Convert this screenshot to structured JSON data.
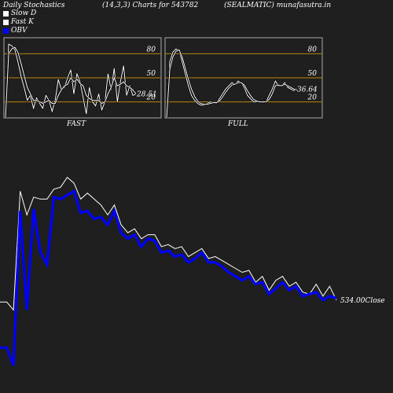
{
  "header": {
    "left": "Daily Stochastics",
    "middle": "(14,3,3) Charts for 543782",
    "right": "(SEALMATIC) munafasutra.in"
  },
  "legend": [
    {
      "label": "Slow  D",
      "color": "#ffffff"
    },
    {
      "label": "Fast K",
      "color": "#ffffff"
    },
    {
      "label": "OBV",
      "color": "#0000ff"
    }
  ],
  "chart_data": [
    {
      "type": "line",
      "label": "FAST",
      "ylim": [
        0,
        100
      ],
      "yticks": [
        20,
        50,
        80
      ],
      "guide_lines": [
        20,
        50,
        80
      ],
      "grid": false,
      "last_value_label": "28.51",
      "series": [
        {
          "name": "Fast K",
          "color": "#ffffff",
          "values": [
            0,
            92,
            90,
            85,
            70,
            52,
            38,
            22,
            28,
            12,
            25,
            18,
            12,
            28,
            22,
            8,
            22,
            48,
            35,
            38,
            50,
            60,
            30,
            55,
            45,
            25,
            5,
            38,
            20,
            15,
            30,
            10,
            20,
            55,
            35,
            62,
            20,
            45,
            65,
            28,
            40,
            28,
            30
          ]
        },
        {
          "name": "Slow D",
          "color": "#ffffff",
          "values": [
            0,
            80,
            86,
            88,
            82,
            68,
            53,
            38,
            30,
            22,
            22,
            20,
            18,
            20,
            22,
            18,
            18,
            28,
            35,
            40,
            42,
            50,
            45,
            48,
            43,
            40,
            28,
            24,
            22,
            22,
            22,
            18,
            20,
            30,
            38,
            50,
            40,
            42,
            45,
            40,
            38,
            35,
            30
          ]
        }
      ]
    },
    {
      "type": "line",
      "label": "FULL",
      "ylim": [
        0,
        100
      ],
      "yticks": [
        20,
        50,
        80
      ],
      "guide_lines": [
        20,
        50,
        80
      ],
      "grid": false,
      "last_value_label": "36.64",
      "series": [
        {
          "name": "Fast K",
          "color": "#ffffff",
          "values": [
            0,
            70,
            82,
            86,
            84,
            70,
            55,
            40,
            28,
            22,
            18,
            16,
            16,
            18,
            20,
            19,
            18,
            24,
            30,
            36,
            40,
            44,
            42,
            46,
            44,
            38,
            28,
            24,
            20,
            20,
            21,
            19,
            20,
            28,
            36,
            46,
            40,
            40,
            44,
            38,
            36,
            34,
            36
          ]
        },
        {
          "name": "Slow D",
          "color": "#ffffff",
          "values": [
            0,
            60,
            76,
            83,
            85,
            76,
            62,
            48,
            36,
            27,
            21,
            18,
            17,
            17,
            18,
            19,
            19,
            21,
            26,
            32,
            37,
            41,
            42,
            44,
            44,
            41,
            34,
            28,
            23,
            21,
            20,
            20,
            20,
            23,
            30,
            40,
            41,
            40,
            42,
            40,
            38,
            36,
            35
          ]
        }
      ]
    },
    {
      "type": "line",
      "label": "",
      "close_label": "534.00Close",
      "ylim": [
        0,
        100
      ],
      "grid": false,
      "series": [
        {
          "name": "Close",
          "color": "#ffffff",
          "values": [
            34,
            34,
            30,
            90,
            78,
            87,
            86,
            86,
            91,
            92,
            97,
            94,
            86,
            89,
            86,
            83,
            78,
            83,
            73,
            69,
            71,
            66,
            68,
            68,
            62,
            63,
            61,
            62,
            57,
            59,
            61,
            56,
            57,
            55,
            53,
            51,
            49,
            50,
            44,
            47,
            40,
            45,
            47,
            42,
            44,
            39,
            38,
            43,
            37,
            42,
            35
          ]
        },
        {
          "name": "OBV",
          "color": "#0000ff",
          "values": [
            11,
            11,
            2,
            80,
            30,
            81,
            59,
            53,
            87,
            86,
            88,
            90,
            79,
            80,
            76,
            77,
            73,
            80,
            69,
            66,
            68,
            62,
            66,
            65,
            59,
            60,
            57,
            58,
            54,
            56,
            59,
            54,
            54,
            52,
            49,
            47,
            45,
            47,
            43,
            44,
            38,
            41,
            44,
            40,
            42,
            37,
            38,
            39,
            35,
            37,
            36
          ]
        }
      ]
    }
  ]
}
